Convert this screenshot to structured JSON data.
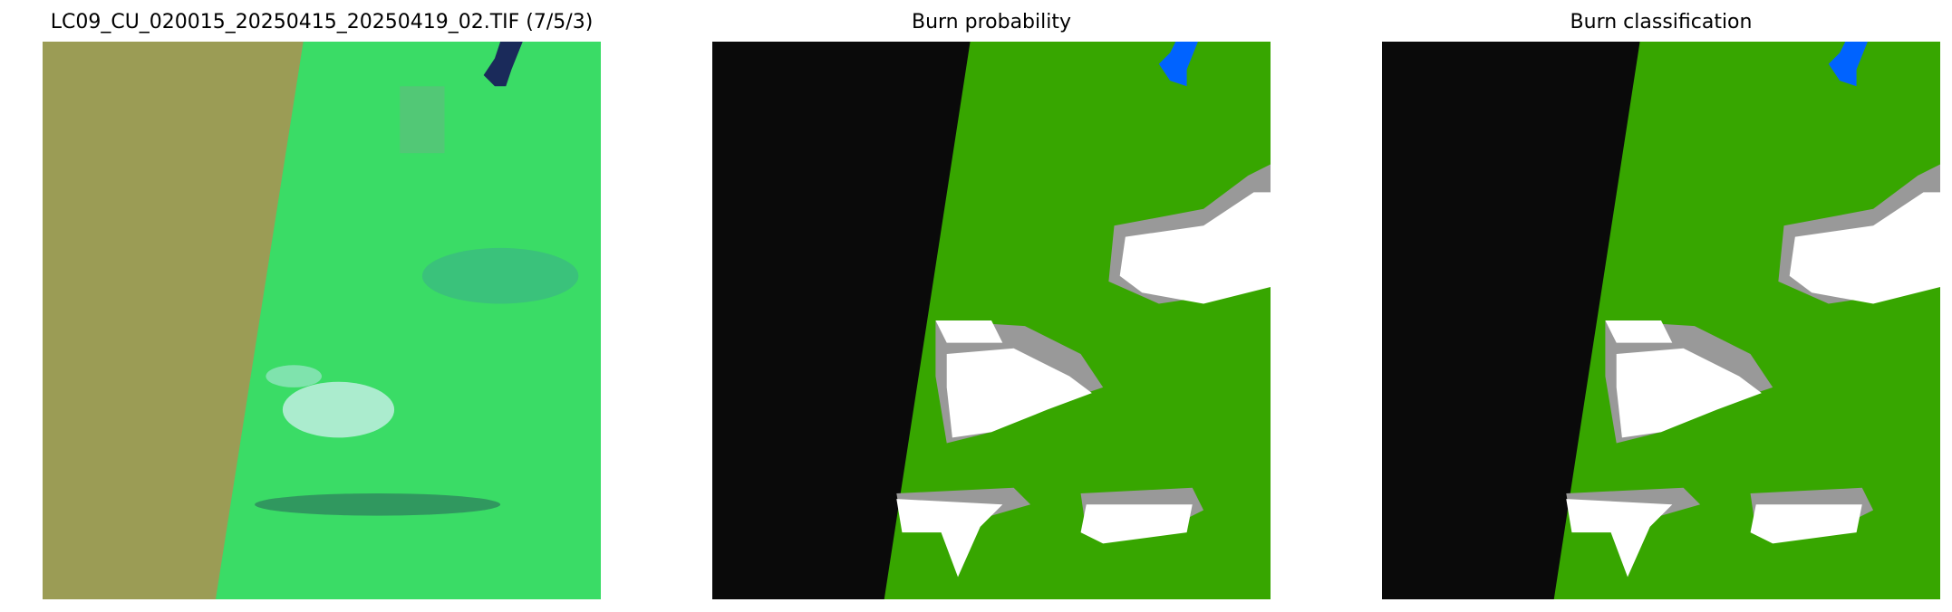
{
  "figure": {
    "panels": [
      {
        "title": "LC09_CU_020015_20250415_20250419_02.TIF (7/5/3)",
        "kind": "false-color composite"
      },
      {
        "title": "Burn probability",
        "kind": "classified map"
      },
      {
        "title": "Burn classification",
        "kind": "classified map"
      }
    ]
  },
  "colors": {
    "nodata_composite": "#9b9c55",
    "vegetation_composite": "#3ee86a",
    "water_composite": "#1a2a5a",
    "nodata": "#0a0a0a",
    "vegetation": "#37a600",
    "water": "#0063ff",
    "cloud": "#ffffff",
    "cloud_shadow": "#999999",
    "burn": "#cc0000"
  }
}
